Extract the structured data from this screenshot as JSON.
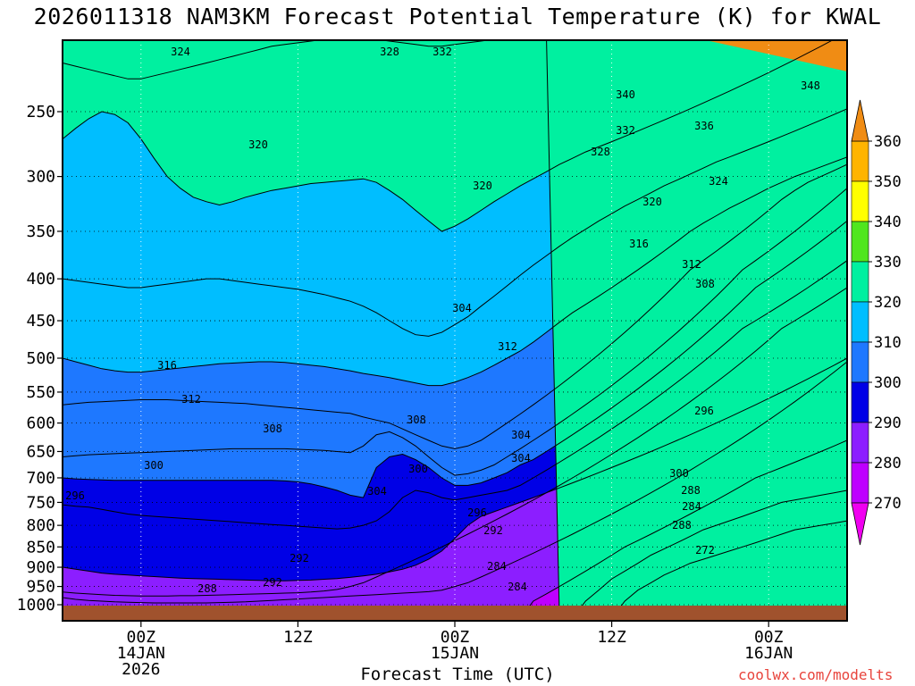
{
  "title": "2026011318 NAM3KM Forecast Potential Temperature (K) for KWAL",
  "credit": "coolwx.com/modelts",
  "chart_data": {
    "type": "contour",
    "title": "2026011318 NAM3KM Forecast Potential Temperature (K) for KWAL",
    "xlabel": "Forecast Time (UTC)",
    "ylabel": "",
    "x_ticks": [
      {
        "hour": 6,
        "lines": [
          "00Z",
          "14JAN",
          "2026"
        ]
      },
      {
        "hour": 18,
        "lines": [
          "12Z"
        ]
      },
      {
        "hour": 30,
        "lines": [
          "00Z",
          "15JAN"
        ]
      },
      {
        "hour": 42,
        "lines": [
          "12Z"
        ]
      },
      {
        "hour": 54,
        "lines": [
          "00Z",
          "16JAN"
        ]
      }
    ],
    "xlim": [
      0,
      60
    ],
    "y_ticks": [
      250,
      300,
      350,
      400,
      450,
      500,
      550,
      600,
      650,
      700,
      750,
      800,
      850,
      900,
      950,
      1000
    ],
    "ylim_hpa": [
      200,
      1010
    ],
    "y_scale": "log-pressure",
    "grid": true,
    "colorbar": {
      "ticks": [
        360,
        350,
        340,
        330,
        320,
        310,
        300,
        290,
        280,
        270
      ],
      "bands": [
        {
          "min": 360,
          "max": 370,
          "color": "#f08c14"
        },
        {
          "min": 350,
          "max": 360,
          "color": "#ffb400"
        },
        {
          "min": 340,
          "max": 350,
          "color": "#ffff00"
        },
        {
          "min": 330,
          "max": 340,
          "color": "#50e61e"
        },
        {
          "min": 320,
          "max": 330,
          "color": "#00f0a0"
        },
        {
          "min": 310,
          "max": 320,
          "color": "#00beff"
        },
        {
          "min": 300,
          "max": 310,
          "color": "#1e78ff"
        },
        {
          "min": 290,
          "max": 300,
          "color": "#0000e6"
        },
        {
          "min": 280,
          "max": 290,
          "color": "#8c1eff"
        },
        {
          "min": 270,
          "max": 280,
          "color": "#be00ff"
        },
        {
          "min": 260,
          "max": 270,
          "color": "#f000f0"
        }
      ]
    },
    "isentropes": [
      {
        "theta": 272,
        "p": [
          null,
          null,
          null,
          null,
          null,
          null,
          null,
          null,
          null,
          null,
          null,
          null,
          null,
          null,
          null,
          null,
          null,
          null,
          null,
          null,
          null,
          null,
          null,
          null,
          null,
          null,
          null,
          null,
          null,
          null,
          null,
          null,
          null,
          null,
          null,
          null,
          null,
          null,
          null,
          null,
          null,
          null,
          null,
          990,
          960,
          940,
          920,
          905,
          890,
          880,
          870,
          860,
          850,
          840,
          830,
          820,
          810,
          805,
          800,
          795,
          790
        ]
      },
      {
        "theta": 276,
        "p": [
          null,
          null,
          null,
          null,
          null,
          null,
          null,
          null,
          null,
          null,
          null,
          null,
          null,
          null,
          null,
          null,
          null,
          null,
          null,
          null,
          null,
          null,
          null,
          null,
          null,
          null,
          null,
          null,
          null,
          null,
          null,
          null,
          null,
          null,
          null,
          null,
          null,
          null,
          null,
          null,
          990,
          960,
          930,
          910,
          890,
          870,
          855,
          840,
          825,
          810,
          800,
          790,
          780,
          770,
          760,
          750,
          745,
          740,
          735,
          730,
          725
        ]
      },
      {
        "theta": 280,
        "p": [
          null,
          null,
          null,
          null,
          null,
          null,
          null,
          null,
          null,
          null,
          null,
          null,
          null,
          null,
          null,
          null,
          null,
          null,
          null,
          null,
          null,
          null,
          null,
          null,
          null,
          null,
          null,
          null,
          null,
          null,
          null,
          null,
          null,
          null,
          null,
          null,
          990,
          970,
          950,
          930,
          910,
          890,
          870,
          850,
          835,
          820,
          805,
          790,
          775,
          760,
          745,
          730,
          715,
          700,
          690,
          680,
          670,
          660,
          650,
          640,
          630
        ]
      },
      {
        "theta": 284,
        "p": [
          980,
          985,
          988,
          990,
          992,
          993,
          994,
          995,
          995,
          995,
          995,
          995,
          994,
          993,
          992,
          990,
          988,
          986,
          984,
          982,
          980,
          978,
          976,
          974,
          972,
          970,
          968,
          966,
          964,
          960,
          950,
          940,
          925,
          910,
          895,
          880,
          865,
          850,
          835,
          820,
          805,
          790,
          775,
          760,
          745,
          730,
          715,
          700,
          685,
          670,
          655,
          640,
          625,
          610,
          595,
          580,
          565,
          550,
          535,
          520,
          505
        ]
      },
      {
        "theta": 288,
        "p": [
          965,
          968,
          970,
          972,
          974,
          975,
          976,
          976,
          976,
          975,
          975,
          974,
          973,
          972,
          971,
          970,
          969,
          968,
          967,
          965,
          962,
          958,
          950,
          940,
          925,
          910,
          895,
          880,
          865,
          850,
          835,
          820,
          805,
          790,
          775,
          760,
          745,
          730,
          715,
          700,
          685,
          670,
          655,
          640,
          625,
          610,
          595,
          580,
          565,
          550,
          535,
          520,
          505,
          490,
          475,
          460,
          450,
          440,
          430,
          420,
          410
        ]
      },
      {
        "theta": 292,
        "p": [
          900,
          905,
          910,
          915,
          918,
          920,
          922,
          924,
          926,
          928,
          929,
          930,
          931,
          932,
          933,
          934,
          935,
          935,
          934,
          933,
          931,
          929,
          926,
          922,
          918,
          912,
          905,
          895,
          880,
          860,
          830,
          800,
          780,
          770,
          760,
          750,
          740,
          730,
          720,
          710,
          700,
          690,
          680,
          670,
          660,
          650,
          640,
          630,
          620,
          610,
          600,
          590,
          580,
          570,
          560,
          550,
          540,
          530,
          520,
          510,
          500
        ]
      },
      {
        "theta": 296,
        "p": [
          755,
          758,
          760,
          765,
          770,
          775,
          778,
          780,
          782,
          784,
          786,
          788,
          790,
          792,
          794,
          796,
          798,
          800,
          802,
          804,
          806,
          808,
          806,
          800,
          790,
          770,
          740,
          725,
          730,
          740,
          745,
          740,
          735,
          730,
          725,
          715,
          700,
          685,
          670,
          655,
          640,
          625,
          610,
          595,
          580,
          565,
          550,
          535,
          520,
          505,
          490,
          475,
          460,
          450,
          440,
          430,
          420,
          410,
          400,
          390,
          380
        ]
      },
      {
        "theta": 300,
        "p": [
          700,
          702,
          703,
          704,
          705,
          705,
          705,
          705,
          705,
          705,
          705,
          705,
          705,
          705,
          705,
          705,
          705,
          706,
          708,
          712,
          718,
          725,
          735,
          740,
          680,
          660,
          655,
          665,
          680,
          700,
          715,
          715,
          710,
          700,
          690,
          675,
          665,
          650,
          635,
          620,
          605,
          590,
          575,
          560,
          545,
          530,
          515,
          500,
          485,
          470,
          455,
          440,
          425,
          410,
          400,
          390,
          380,
          370,
          360,
          350,
          340
        ]
      },
      {
        "theta": 304,
        "p": [
          660,
          658,
          656,
          655,
          654,
          653,
          652,
          651,
          650,
          649,
          648,
          647,
          646,
          645,
          645,
          645,
          645,
          645,
          646,
          647,
          648,
          650,
          652,
          640,
          620,
          615,
          625,
          640,
          660,
          680,
          695,
          692,
          685,
          675,
          660,
          645,
          630,
          615,
          600,
          585,
          570,
          555,
          540,
          525,
          510,
          495,
          480,
          465,
          450,
          435,
          420,
          405,
          390,
          380,
          370,
          360,
          350,
          340,
          330,
          320,
          310
        ]
      },
      {
        "theta": 308,
        "p": [
          570,
          568,
          566,
          565,
          564,
          563,
          562,
          562,
          562,
          563,
          564,
          565,
          566,
          567,
          568,
          570,
          572,
          574,
          576,
          578,
          580,
          582,
          584,
          590,
          595,
          600,
          610,
          620,
          630,
          640,
          645,
          640,
          630,
          615,
          600,
          585,
          570,
          555,
          540,
          525,
          510,
          495,
          480,
          465,
          450,
          435,
          420,
          405,
          390,
          380,
          370,
          360,
          350,
          340,
          330,
          320,
          312,
          305,
          300,
          295,
          290
        ]
      },
      {
        "theta": 312,
        "p": [
          500,
          505,
          510,
          515,
          518,
          520,
          520,
          518,
          516,
          514,
          512,
          510,
          508,
          507,
          506,
          505,
          505,
          506,
          508,
          510,
          512,
          515,
          518,
          522,
          525,
          528,
          532,
          536,
          540,
          540,
          535,
          528,
          520,
          510,
          500,
          490,
          478,
          465,
          452,
          440,
          430,
          420,
          410,
          400,
          390,
          380,
          370,
          360,
          350,
          342,
          335,
          328,
          322,
          316,
          310,
          305,
          300,
          296,
          292,
          288,
          284
        ]
      },
      {
        "theta": 316,
        "p": [
          400,
          402,
          404,
          406,
          408,
          410,
          410,
          408,
          406,
          404,
          402,
          400,
          400,
          402,
          404,
          406,
          408,
          410,
          412,
          415,
          418,
          422,
          426,
          432,
          440,
          450,
          460,
          468,
          470,
          465,
          455,
          445,
          432,
          420,
          408,
          396,
          385,
          375,
          365,
          356,
          348,
          340,
          333,
          326,
          320,
          314,
          308,
          303,
          298,
          293,
          288,
          284,
          280,
          276,
          272,
          268,
          264,
          260,
          256,
          252,
          248
        ]
      },
      {
        "theta": 320,
        "p": [
          270,
          262,
          255,
          250,
          252,
          258,
          270,
          285,
          300,
          310,
          318,
          322,
          325,
          322,
          318,
          315,
          312,
          310,
          308,
          306,
          305,
          304,
          303,
          302,
          305,
          312,
          320,
          330,
          340,
          350,
          345,
          338,
          330,
          322,
          315,
          308,
          302,
          296,
          290,
          285,
          280,
          276,
          272,
          268,
          264,
          260,
          256,
          252,
          248,
          244,
          240,
          236,
          232,
          228,
          224,
          220,
          216,
          212,
          208,
          204,
          200
        ]
      },
      {
        "theta": 324,
        "p": [
          218,
          220,
          222,
          224,
          226,
          228,
          228,
          226,
          224,
          222,
          220,
          218,
          216,
          214,
          212,
          210,
          208,
          207,
          206,
          205,
          204,
          204,
          204,
          204,
          204,
          205,
          206,
          207,
          208,
          208,
          207,
          206,
          205,
          204,
          203,
          202,
          201,
          200,
          null,
          null,
          null,
          null,
          null,
          null,
          null,
          null,
          null,
          null,
          null,
          null,
          null,
          null,
          null,
          null,
          null,
          null,
          null,
          null,
          null,
          null,
          null
        ]
      }
    ],
    "contour_labels": [
      "324",
      "328",
      "332",
      "340",
      "348",
      "336",
      "332",
      "328",
      "324",
      "320",
      "320",
      "320",
      "316",
      "312",
      "308",
      "304",
      "316",
      "312",
      "312",
      "308",
      "304",
      "308",
      "304",
      "300",
      "304",
      "300",
      "296",
      "300",
      "296",
      "296",
      "292",
      "292",
      "288",
      "284",
      "292",
      "288",
      "284",
      "288",
      "284",
      "272"
    ]
  }
}
